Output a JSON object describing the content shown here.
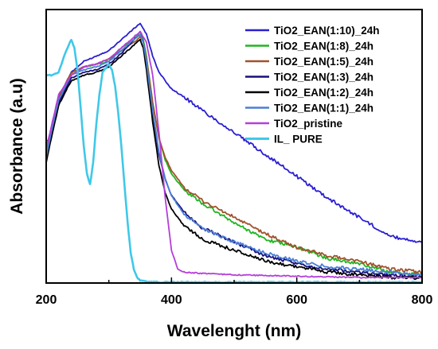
{
  "chart_data": {
    "type": "line",
    "xlabel": "Wavelenght (nm)",
    "ylabel": "Absorbance (a.u)",
    "xlim": [
      200,
      800
    ],
    "ylim": [
      0,
      1.0
    ],
    "x_ticks": [
      200,
      400,
      600,
      800
    ],
    "x_tick_labels": [
      "200",
      "400",
      "600",
      "800"
    ],
    "y_ticks_shown": false,
    "grid": false,
    "legend_position": "top-right",
    "series": [
      {
        "name": "TiO2_EAN(1:10)_24h",
        "color": "#2a1fd1",
        "x": [
          200,
          205,
          220,
          240,
          260,
          280,
          300,
          320,
          340,
          350,
          360,
          370,
          380,
          390,
          400,
          420,
          450,
          500,
          550,
          600,
          650,
          700,
          750,
          800
        ],
        "y": [
          0.52,
          0.52,
          0.68,
          0.77,
          0.81,
          0.83,
          0.85,
          0.89,
          0.93,
          0.95,
          0.91,
          0.83,
          0.77,
          0.74,
          0.71,
          0.68,
          0.63,
          0.55,
          0.47,
          0.39,
          0.31,
          0.24,
          0.17,
          0.15
        ]
      },
      {
        "name": "TiO2_EAN(1:8)_24h",
        "color": "#21b521",
        "x": [
          200,
          210,
          220,
          240,
          260,
          280,
          300,
          320,
          340,
          350,
          355,
          360,
          370,
          380,
          390,
          400,
          420,
          450,
          500,
          550,
          600,
          650,
          700,
          750,
          800
        ],
        "y": [
          0.46,
          0.57,
          0.67,
          0.76,
          0.79,
          0.8,
          0.81,
          0.86,
          0.89,
          0.92,
          0.89,
          0.83,
          0.66,
          0.53,
          0.45,
          0.4,
          0.34,
          0.29,
          0.22,
          0.16,
          0.13,
          0.09,
          0.07,
          0.04,
          0.03
        ]
      },
      {
        "name": "TiO2_EAN(1:5)_24h",
        "color": "#a0522d",
        "x": [
          200,
          210,
          220,
          240,
          260,
          280,
          300,
          320,
          340,
          350,
          355,
          360,
          370,
          380,
          390,
          400,
          420,
          450,
          500,
          550,
          600,
          650,
          700,
          750,
          800
        ],
        "y": [
          0.48,
          0.58,
          0.68,
          0.77,
          0.79,
          0.8,
          0.82,
          0.85,
          0.88,
          0.9,
          0.88,
          0.82,
          0.66,
          0.53,
          0.46,
          0.41,
          0.35,
          0.3,
          0.24,
          0.18,
          0.13,
          0.1,
          0.08,
          0.05,
          0.04
        ]
      },
      {
        "name": "TiO2_EAN(1:3)_24h",
        "color": "#18107a",
        "x": [
          200,
          210,
          220,
          240,
          260,
          280,
          300,
          320,
          340,
          350,
          355,
          360,
          370,
          380,
          390,
          400,
          420,
          450,
          500,
          550,
          600,
          650,
          700,
          750,
          800
        ],
        "y": [
          0.45,
          0.56,
          0.66,
          0.75,
          0.77,
          0.78,
          0.8,
          0.84,
          0.89,
          0.91,
          0.88,
          0.8,
          0.62,
          0.47,
          0.38,
          0.32,
          0.26,
          0.2,
          0.15,
          0.1,
          0.07,
          0.05,
          0.04,
          0.03,
          0.02
        ]
      },
      {
        "name": "TiO2_EAN(1:2)_24h",
        "color": "#000000",
        "x": [
          200,
          210,
          220,
          240,
          260,
          280,
          300,
          320,
          340,
          350,
          355,
          360,
          370,
          380,
          390,
          400,
          420,
          450,
          500,
          550,
          600,
          650,
          700,
          750,
          800
        ],
        "y": [
          0.44,
          0.55,
          0.65,
          0.74,
          0.76,
          0.77,
          0.79,
          0.83,
          0.87,
          0.89,
          0.86,
          0.78,
          0.59,
          0.43,
          0.33,
          0.27,
          0.21,
          0.16,
          0.12,
          0.08,
          0.06,
          0.04,
          0.03,
          0.02,
          0.02
        ]
      },
      {
        "name": "TiO2_EAN(1:1)_24h",
        "color": "#4a7fd6",
        "x": [
          200,
          210,
          220,
          240,
          260,
          280,
          300,
          320,
          340,
          350,
          355,
          360,
          370,
          380,
          390,
          400,
          420,
          450,
          500,
          550,
          600,
          650,
          700,
          750,
          800
        ],
        "y": [
          0.46,
          0.57,
          0.67,
          0.76,
          0.78,
          0.79,
          0.81,
          0.85,
          0.89,
          0.91,
          0.88,
          0.81,
          0.63,
          0.48,
          0.38,
          0.32,
          0.25,
          0.2,
          0.15,
          0.11,
          0.08,
          0.06,
          0.05,
          0.04,
          0.03
        ]
      },
      {
        "name": "TiO2_pristine",
        "color": "#b43fd8",
        "x": [
          200,
          210,
          220,
          240,
          260,
          280,
          300,
          320,
          340,
          350,
          360,
          370,
          380,
          390,
          400,
          410,
          420,
          450,
          500,
          600,
          700,
          800
        ],
        "y": [
          0.49,
          0.59,
          0.69,
          0.76,
          0.79,
          0.8,
          0.82,
          0.86,
          0.9,
          0.92,
          0.88,
          0.76,
          0.55,
          0.31,
          0.12,
          0.05,
          0.04,
          0.035,
          0.03,
          0.025,
          0.02,
          0.02
        ]
      },
      {
        "name": "IL_ PURE",
        "color": "#3fc8e8",
        "x": [
          200,
          210,
          220,
          230,
          240,
          245,
          250,
          255,
          260,
          265,
          270,
          275,
          280,
          285,
          290,
          300,
          305,
          310,
          315,
          320,
          325,
          330,
          335,
          340,
          345,
          350,
          360,
          380,
          400,
          500,
          600,
          700,
          800
        ],
        "y": [
          0.76,
          0.76,
          0.77,
          0.84,
          0.89,
          0.86,
          0.78,
          0.64,
          0.5,
          0.4,
          0.36,
          0.44,
          0.58,
          0.69,
          0.77,
          0.8,
          0.78,
          0.72,
          0.62,
          0.5,
          0.36,
          0.22,
          0.11,
          0.05,
          0.02,
          0.01,
          0.005,
          0.003,
          0.003,
          0.003,
          0.003,
          0.003,
          0.003
        ]
      }
    ]
  }
}
